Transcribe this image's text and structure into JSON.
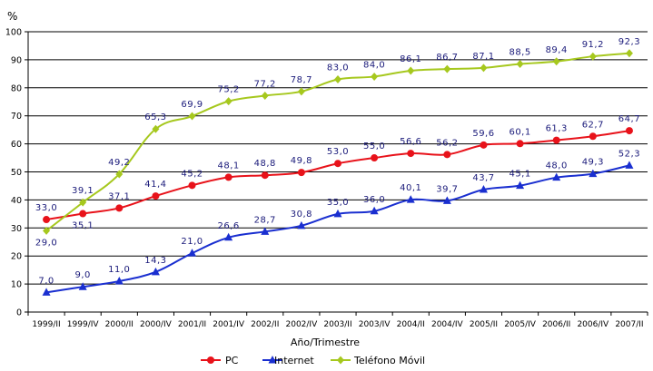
{
  "chart_data": {
    "type": "line",
    "title": "",
    "ylabel": "%",
    "xlabel": "Año/Trimestre",
    "ylim": [
      0,
      100
    ],
    "yticks": [
      0,
      10,
      20,
      30,
      40,
      50,
      60,
      70,
      80,
      90,
      100
    ],
    "grid": true,
    "legend_position": "bottom",
    "categories": [
      "1999/II",
      "1999/IV",
      "2000/II",
      "2000/IV",
      "2001/II",
      "2001/IV",
      "2002/II",
      "2002/IV",
      "2003/II",
      "2003/IV",
      "2004/II",
      "2004/IV",
      "2005/II",
      "2005/IV",
      "2006/II",
      "2006/IV",
      "2007/II"
    ],
    "series": [
      {
        "name": "PC",
        "color": "#e8121a",
        "marker": "circle",
        "values": [
          33.0,
          35.1,
          37.1,
          41.4,
          45.2,
          48.1,
          48.8,
          49.8,
          53.0,
          55.0,
          56.6,
          56.2,
          59.6,
          60.1,
          61.3,
          62.7,
          64.7
        ],
        "labels": [
          "33,0",
          "35,1",
          "37,1",
          "41,4",
          "45,2",
          "48,1",
          "48,8",
          "49,8",
          "53,0",
          "55,0",
          "56,6",
          "56,2",
          "59,6",
          "60,1",
          "61,3",
          "62,7",
          "64,7"
        ]
      },
      {
        "name": "Internet",
        "color": "#1a2fd0",
        "marker": "triangle",
        "values": [
          7.0,
          9.0,
          11.0,
          14.3,
          21.0,
          26.6,
          28.7,
          30.8,
          35.0,
          36.0,
          40.1,
          39.7,
          43.7,
          45.1,
          48.0,
          49.3,
          52.3
        ],
        "labels": [
          "7,0",
          "9,0",
          "11,0",
          "14,3",
          "21,0",
          "26,6",
          "28,7",
          "30,8",
          "35,0",
          "36,0",
          "40,1",
          "39,7",
          "43,7",
          "45,1",
          "48,0",
          "49,3",
          "52,3"
        ]
      },
      {
        "name": "Teléfono Móvil",
        "color": "#a6c81e",
        "marker": "diamond",
        "values": [
          29.0,
          39.1,
          49.2,
          65.3,
          69.9,
          75.2,
          77.2,
          78.7,
          83.0,
          84.0,
          86.1,
          86.7,
          87.1,
          88.5,
          89.4,
          91.2,
          92.3
        ],
        "labels": [
          "29,0",
          "39,1",
          "49,2",
          "65,3",
          "69,9",
          "75,2",
          "77,2",
          "78,7",
          "83,0",
          "84,0",
          "86,1",
          "86,7",
          "87,1",
          "88,5",
          "89,4",
          "91,2",
          "92,3"
        ]
      }
    ]
  }
}
